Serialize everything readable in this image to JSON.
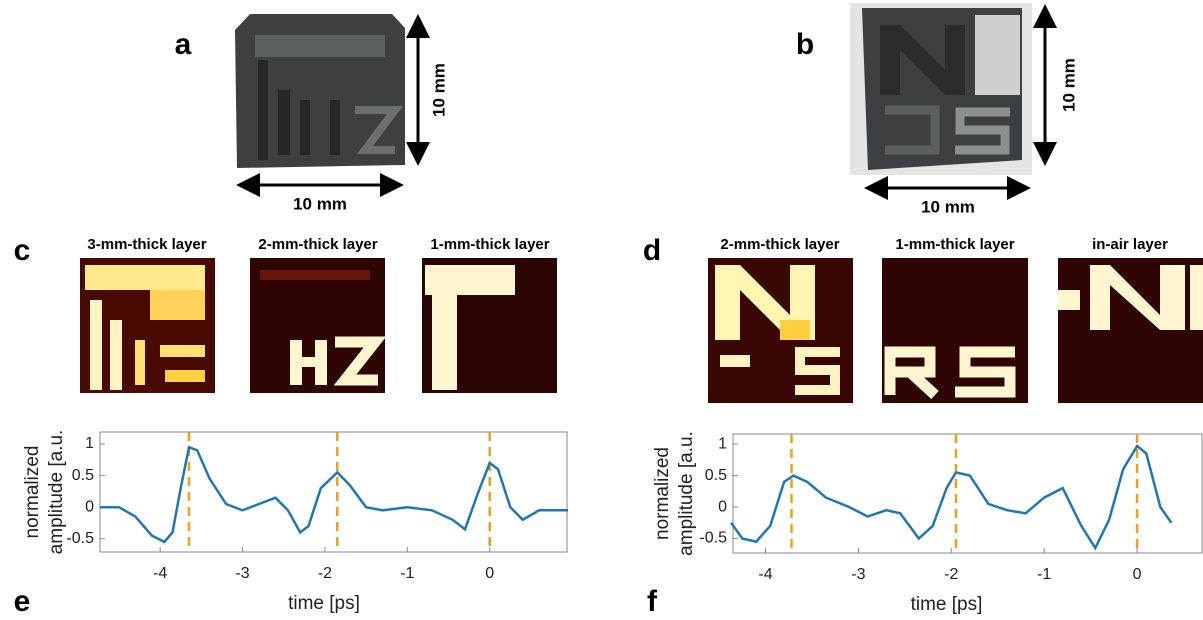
{
  "panel_labels": [
    "a",
    "b",
    "c",
    "d",
    "e",
    "f"
  ],
  "scale_labels": [
    "10 mm",
    "10 mm",
    "10 mm",
    "10 mm"
  ],
  "layers_c": [
    "3-mm-thick layer",
    "2-mm-thick layer",
    "1-mm-thick layer"
  ],
  "layers_d": [
    "2-mm-thick layer",
    "1-mm-thick layer",
    "in-air layer"
  ],
  "chart_data": [
    {
      "type": "line",
      "xlabel": "time [ps]",
      "ylabel": [
        "normalized",
        "amplitude [a.u."
      ],
      "color": "#1f77b4",
      "x": [
        -4.73,
        -4.5,
        -4.3,
        -4.1,
        -3.95,
        -3.85,
        -3.75,
        -3.65,
        -3.55,
        -3.4,
        -3.2,
        -3.0,
        -2.8,
        -2.6,
        -2.45,
        -2.3,
        -2.2,
        -2.05,
        -1.85,
        -1.7,
        -1.5,
        -1.3,
        -1.0,
        -0.7,
        -0.45,
        -0.3,
        -0.15,
        0.0,
        0.1,
        0.25,
        0.4,
        0.6,
        0.8,
        0.95
      ],
      "values": [
        0.0,
        0.0,
        -0.15,
        -0.45,
        -0.55,
        -0.4,
        0.3,
        0.95,
        0.9,
        0.45,
        0.05,
        -0.05,
        0.05,
        0.15,
        -0.05,
        -0.4,
        -0.3,
        0.3,
        0.55,
        0.35,
        0.0,
        -0.05,
        0.0,
        -0.05,
        -0.2,
        -0.35,
        0.2,
        0.7,
        0.6,
        0.0,
        -0.2,
        -0.05,
        -0.05,
        -0.05
      ],
      "vlines": [
        -3.65,
        -1.85,
        0
      ],
      "vline_color": "#e8a317",
      "xlim": [
        -4.73,
        0.95
      ],
      "ylim": [
        -0.71,
        1.19
      ],
      "xticks": [
        -4,
        -3,
        -2,
        -1,
        0
      ],
      "yticks": [
        -0.5,
        0,
        0.5,
        1
      ]
    },
    {
      "type": "line",
      "xlabel": "time [ps]",
      "ylabel": [
        "normalized",
        "amplitude [a.u."
      ],
      "color": "#1f77b4",
      "x": [
        -4.37,
        -4.25,
        -4.1,
        -3.95,
        -3.8,
        -3.7,
        -3.55,
        -3.35,
        -3.1,
        -2.9,
        -2.7,
        -2.55,
        -2.35,
        -2.2,
        -2.05,
        -1.95,
        -1.8,
        -1.6,
        -1.4,
        -1.2,
        -1.0,
        -0.8,
        -0.6,
        -0.45,
        -0.3,
        -0.15,
        0.0,
        0.1,
        0.25,
        0.37
      ],
      "values": [
        -0.25,
        -0.5,
        -0.55,
        -0.3,
        0.4,
        0.5,
        0.4,
        0.15,
        0.0,
        -0.15,
        -0.05,
        -0.1,
        -0.5,
        -0.3,
        0.3,
        0.55,
        0.5,
        0.05,
        -0.05,
        -0.1,
        0.15,
        0.3,
        -0.3,
        -0.65,
        -0.2,
        0.6,
        0.97,
        0.85,
        0.0,
        -0.25
      ],
      "vlines": [
        -3.72,
        -1.95,
        0
      ],
      "vline_color": "#e8a317",
      "xlim": [
        -4.35,
        0.71
      ],
      "ylim": [
        -0.73,
        1.16
      ],
      "xticks": [
        -4,
        -3,
        -2,
        -1,
        0
      ],
      "yticks": [
        -0.5,
        0,
        0.5,
        1
      ]
    }
  ]
}
